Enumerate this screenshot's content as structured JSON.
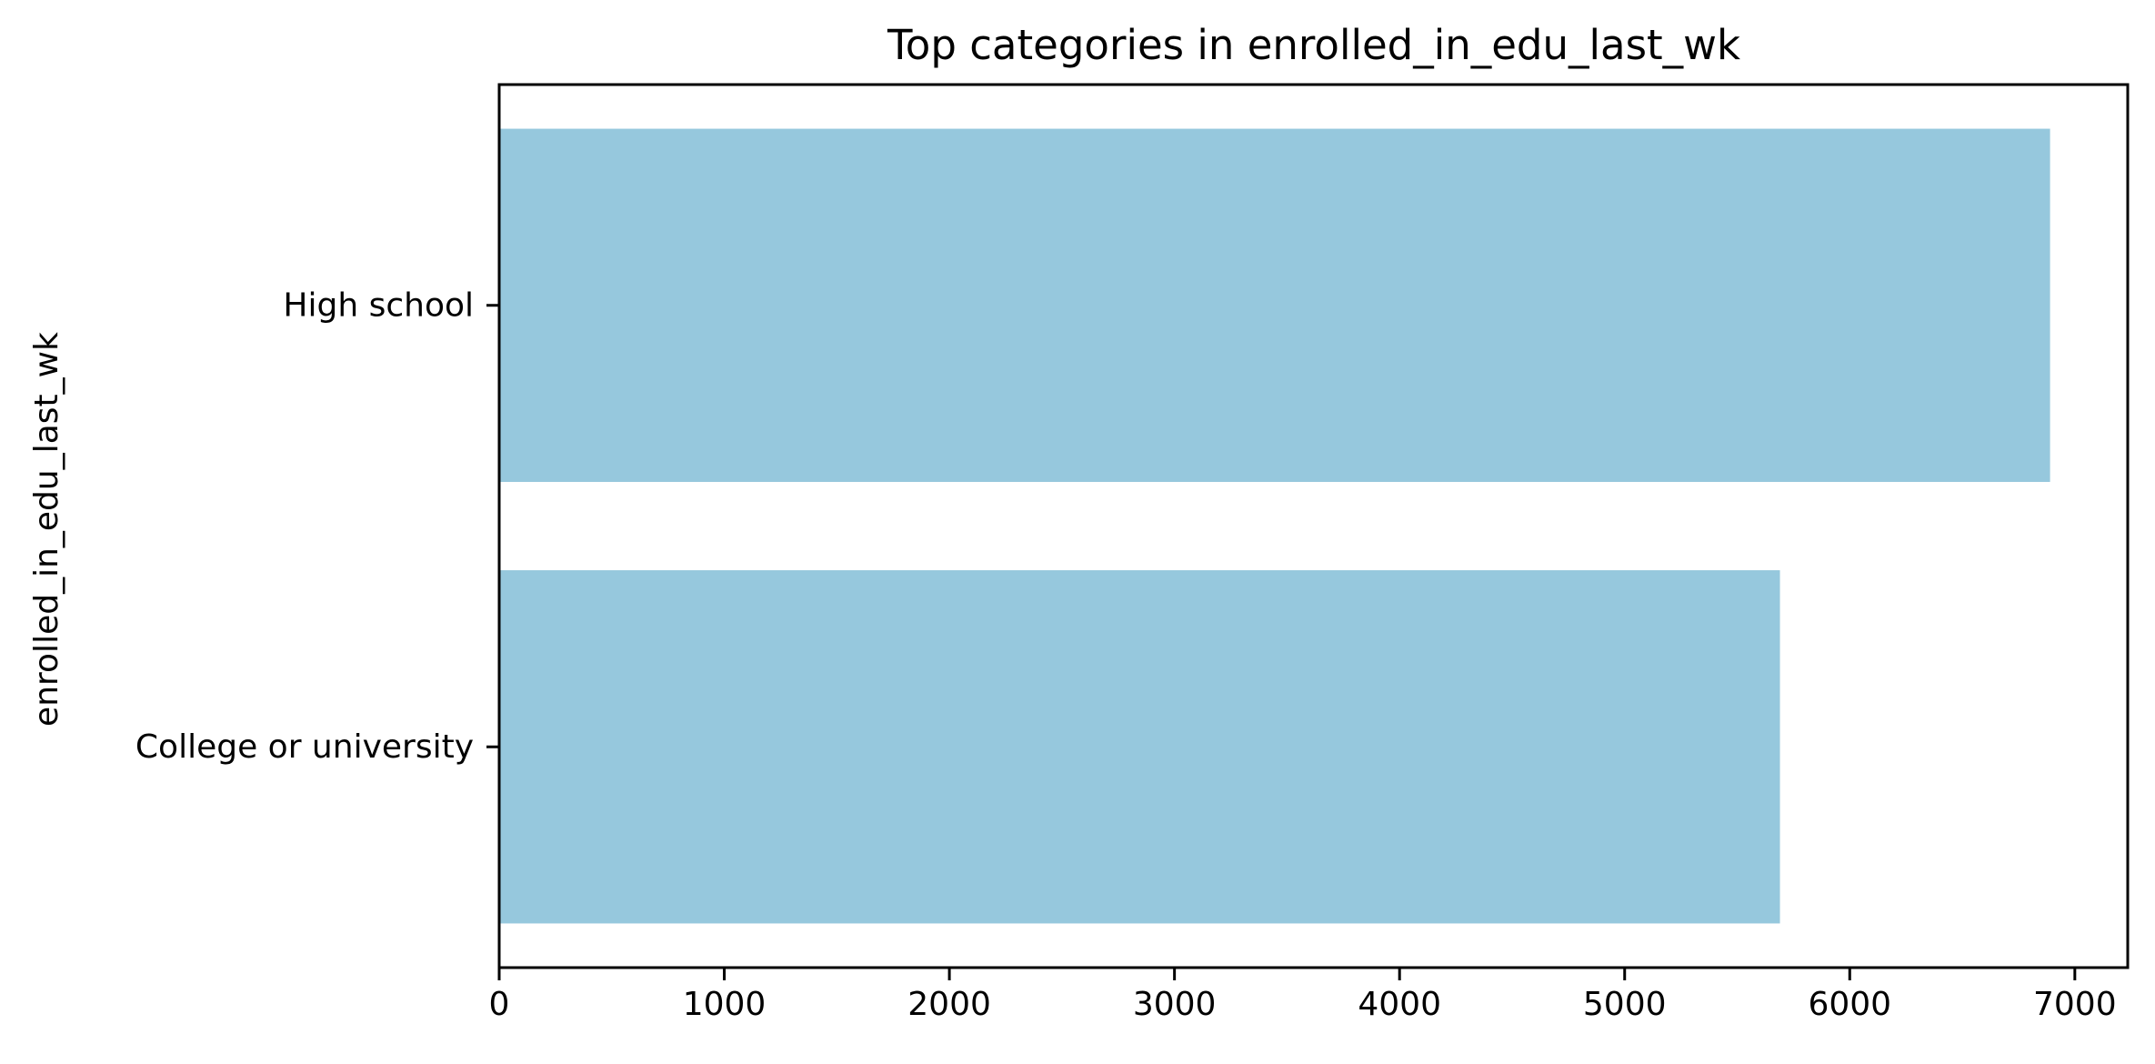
{
  "chart_data": {
    "type": "bar",
    "orientation": "horizontal",
    "title": "Top categories in enrolled_in_edu_last_wk",
    "xlabel": "",
    "ylabel": "enrolled_in_edu_last_wk",
    "categories": [
      "High school",
      "College or university"
    ],
    "values": [
      6890,
      5690
    ],
    "xlim": [
      0,
      7235
    ],
    "xticks": [
      0,
      1000,
      2000,
      3000,
      4000,
      5000,
      6000,
      7000
    ],
    "xtick_labels": [
      "0",
      "1000",
      "2000",
      "3000",
      "4000",
      "5000",
      "6000",
      "7000"
    ],
    "bar_color": "#96c8dd",
    "grid": false,
    "legend": "none"
  }
}
